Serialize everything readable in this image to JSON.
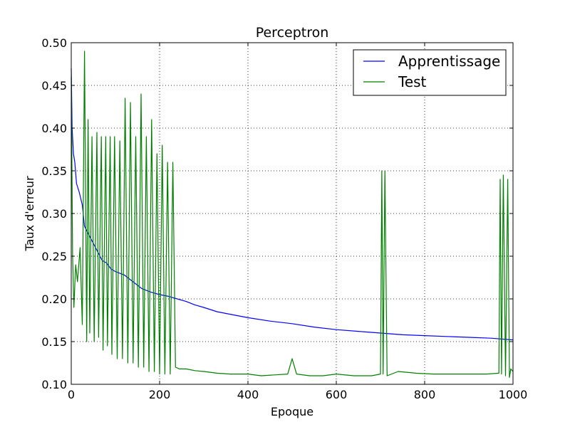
{
  "chart_data": {
    "type": "line",
    "title": "Perceptron",
    "xlabel": "Epoque",
    "ylabel": "Taux d'erreur",
    "xlim": [
      0,
      1000
    ],
    "ylim": [
      0.1,
      0.5
    ],
    "xticks": [
      0,
      200,
      400,
      600,
      800,
      1000
    ],
    "yticks": [
      0.1,
      0.15,
      0.2,
      0.25,
      0.3,
      0.35,
      0.4,
      0.45,
      0.5
    ],
    "xtick_labels": [
      "0",
      "200",
      "400",
      "600",
      "800",
      "1000"
    ],
    "ytick_labels": [
      "0.10",
      "0.15",
      "0.20",
      "0.25",
      "0.30",
      "0.35",
      "0.40",
      "0.45",
      "0.50"
    ],
    "grid": true,
    "legend_position": "top-right",
    "series": [
      {
        "name": "Apprentissage",
        "color": "#0000ff",
        "x": [
          0,
          2,
          5,
          8,
          12,
          18,
          25,
          30,
          35,
          40,
          50,
          60,
          70,
          80,
          90,
          100,
          120,
          140,
          160,
          180,
          200,
          220,
          240,
          260,
          280,
          300,
          330,
          360,
          400,
          450,
          500,
          550,
          600,
          650,
          700,
          750,
          800,
          850,
          900,
          950,
          1000
        ],
        "y": [
          0.47,
          0.4,
          0.37,
          0.36,
          0.335,
          0.325,
          0.31,
          0.285,
          0.28,
          0.275,
          0.265,
          0.255,
          0.245,
          0.242,
          0.235,
          0.232,
          0.228,
          0.22,
          0.212,
          0.208,
          0.205,
          0.203,
          0.2,
          0.197,
          0.193,
          0.19,
          0.185,
          0.182,
          0.178,
          0.174,
          0.171,
          0.167,
          0.164,
          0.162,
          0.16,
          0.158,
          0.157,
          0.156,
          0.155,
          0.154,
          0.152
        ]
      },
      {
        "name": "Test",
        "color": "#008000",
        "x": [
          0,
          3,
          6,
          10,
          14,
          20,
          25,
          30,
          35,
          38,
          42,
          47,
          52,
          58,
          62,
          68,
          72,
          78,
          82,
          88,
          92,
          98,
          104,
          110,
          116,
          122,
          128,
          134,
          140,
          146,
          152,
          158,
          164,
          170,
          176,
          182,
          188,
          194,
          200,
          206,
          212,
          218,
          224,
          230,
          236,
          245,
          260,
          280,
          300,
          330,
          360,
          400,
          430,
          460,
          490,
          500,
          510,
          540,
          570,
          600,
          640,
          680,
          700,
          703,
          706,
          710,
          715,
          740,
          780,
          820,
          860,
          900,
          940,
          968,
          971,
          974,
          978,
          983,
          988,
          992,
          995,
          1000
        ],
        "y": [
          0.46,
          0.25,
          0.19,
          0.24,
          0.22,
          0.26,
          0.17,
          0.49,
          0.15,
          0.41,
          0.16,
          0.39,
          0.15,
          0.395,
          0.155,
          0.39,
          0.14,
          0.39,
          0.145,
          0.39,
          0.135,
          0.39,
          0.13,
          0.385,
          0.13,
          0.435,
          0.125,
          0.43,
          0.125,
          0.39,
          0.12,
          0.44,
          0.12,
          0.39,
          0.115,
          0.41,
          0.115,
          0.37,
          0.112,
          0.38,
          0.112,
          0.36,
          0.112,
          0.36,
          0.12,
          0.118,
          0.118,
          0.116,
          0.115,
          0.113,
          0.112,
          0.112,
          0.11,
          0.111,
          0.112,
          0.13,
          0.112,
          0.11,
          0.11,
          0.112,
          0.11,
          0.11,
          0.112,
          0.35,
          0.112,
          0.35,
          0.11,
          0.115,
          0.113,
          0.112,
          0.112,
          0.112,
          0.112,
          0.113,
          0.34,
          0.112,
          0.345,
          0.11,
          0.34,
          0.108,
          0.118,
          0.115
        ]
      }
    ]
  }
}
